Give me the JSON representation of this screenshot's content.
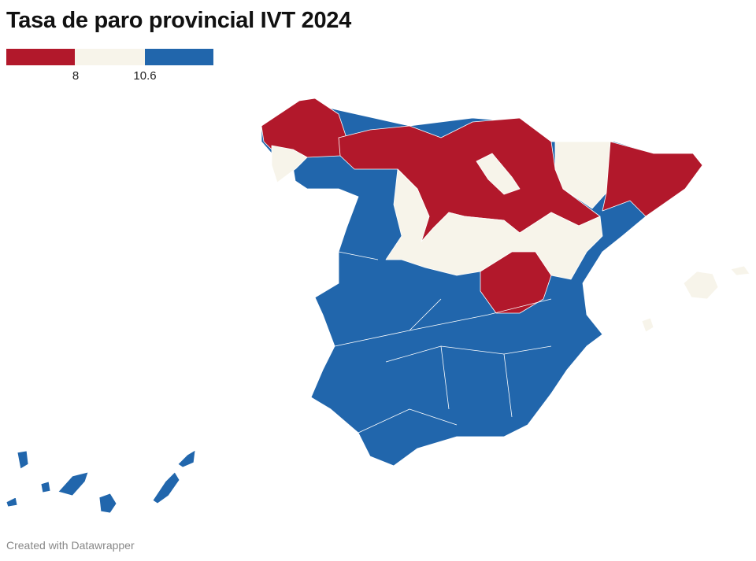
{
  "title": "Tasa de paro provincial IVT 2024",
  "legend": {
    "breaks": [
      "8",
      "10.6"
    ],
    "colors": {
      "low": "#b2182b",
      "mid": "#f7f4ea",
      "high": "#2166ac"
    }
  },
  "map": {
    "region": "Spain provinces",
    "classes": [
      {
        "range": "< 8",
        "color": "#b2182b"
      },
      {
        "range": "8 – 10.6",
        "color": "#f7f4ea"
      },
      {
        "range": "> 10.6",
        "color": "#2166ac"
      }
    ]
  },
  "footer": "Created with Datawrapper"
}
